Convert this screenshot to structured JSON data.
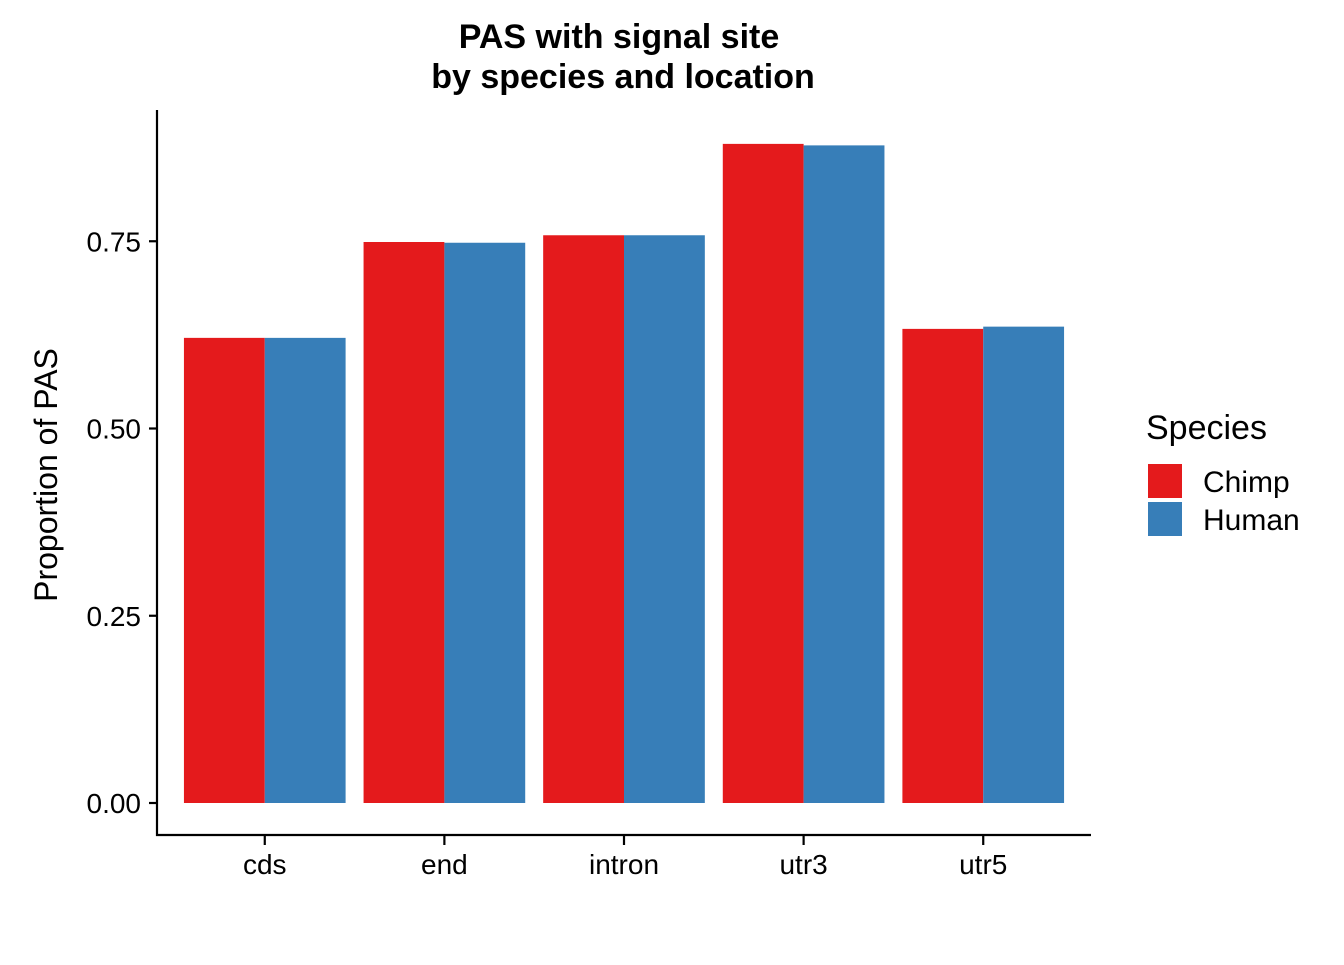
{
  "chart_data": {
    "type": "bar",
    "title_lines": [
      "PAS with signal site",
      "by species and location"
    ],
    "xlabel": "",
    "ylabel": "Proportion of PAS",
    "categories": [
      "cds",
      "end",
      "intron",
      "utr3",
      "utr5"
    ],
    "series": [
      {
        "name": "Chimp",
        "color": "#E41A1C",
        "values": [
          0.621,
          0.749,
          0.758,
          0.88,
          0.633
        ]
      },
      {
        "name": "Human",
        "color": "#377EB8",
        "values": [
          0.621,
          0.748,
          0.758,
          0.878,
          0.636
        ]
      }
    ],
    "ylim": [
      0,
      0.9
    ],
    "yticks": [
      0.0,
      0.25,
      0.5,
      0.75
    ],
    "ytick_labels": [
      "0.00",
      "0.25",
      "0.50",
      "0.75"
    ],
    "grid": false,
    "legend": {
      "title": "Species",
      "position": "right"
    }
  }
}
